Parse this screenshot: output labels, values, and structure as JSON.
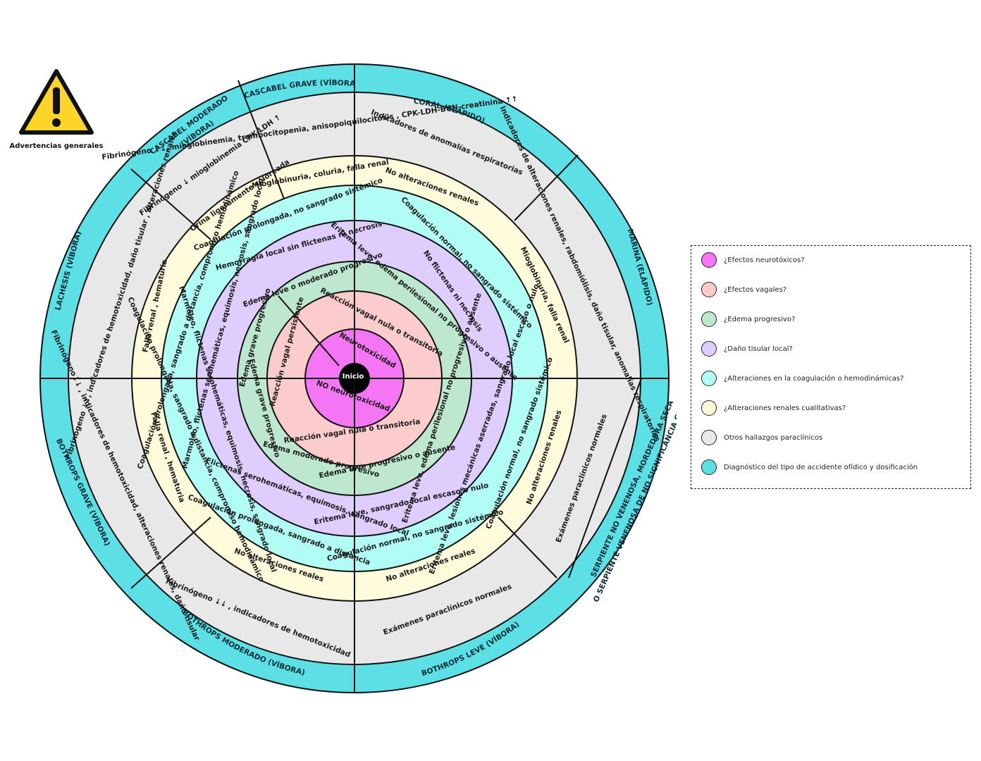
{
  "warning": {
    "icon": "warning-triangle-icon",
    "label": "Advertencias generales"
  },
  "legend": [
    {
      "label": "¿Efectos neurotóxicos?",
      "color": "#f476f5"
    },
    {
      "label": "¿Efectos vagales?",
      "color": "#fccccc"
    },
    {
      "label": "¿Edema progresivo?",
      "color": "#bde8cf"
    },
    {
      "label": "¿Daño tisular local?",
      "color": "#decdfd"
    },
    {
      "label": "¿Alteraciones en la coagulación o hemodinámicas?",
      "color": "#b1fcf5"
    },
    {
      "label": "¿Alteraciones renales cualitativas?",
      "color": "#fffbdb"
    },
    {
      "label": "Otros hallazgos paraclínicos",
      "color": "#e8e8e8"
    },
    {
      "label": "Diagnóstico del tipo de accidente ofídico  y dosificación",
      "color": "#5ce0e6"
    }
  ],
  "wheel": {
    "center_label": "Inicio",
    "neuro": {
      "yes": "Neurotoxicidad",
      "no": "NO neurotoxicidad"
    },
    "vagal": {
      "top_right": "Reacción vagal nula o transitoria",
      "top_left": "Reacción vagal persistente",
      "bottom": "Reacción vagal nula o transitoria"
    },
    "edema": {
      "a": "Eritema leve, edema perilesional no progresivo o ausente",
      "b": "Edema leve o moderado progresivo",
      "c": "Edema grave progresivo",
      "d": "Edema grave progresivo",
      "e": "Edema moderado progresivo",
      "f": "Edema leve progresivo o ausente",
      "g": "Eritema leve, edema perilesional no progresivo o ausente"
    },
    "tissue": {
      "a": "No flictenas ni necrosis",
      "b": "Hemorragia local sin flictenas ni necrosis",
      "c": "Marmoleo, flictenas serohemáticas, equimosis, necrosis, sangrado local",
      "d": "Marmoleo, flictenas serohemáticas, equimosis, necrosis, sangrado local",
      "e": "Flictenas serohemáticas, equimosis, sangrado local",
      "f": "Eritema leve, sangrado local escaso o nulo",
      "g": "Eritema leve, lesiones mecánicas aserradas, sangrado local escaso o nulo"
    },
    "coag": {
      "a": "Coagulación normal, no sangrado sistémico",
      "b": "Coagulación prolongada, no sangrado sistémico",
      "c": "Coagulación prolongada, sangrado a distancia, compromiso hemodinámico",
      "d": "Coagulación prolongada, sangrado a distancia, compromiso hemodinámico",
      "e": "Coagulación prolongada, sangrado a distancia",
      "f": "Coagulación normal, no sangrado sistémico",
      "g": "Coagulación normal, no sangrado sistémico"
    },
    "renal": {
      "a": "No alteraciones renales",
      "a2": "Mioglobinuria, falla renal",
      "b": "Mioglobinuria, coluria, falla renal",
      "b2": "Orina ligeramente coloreada",
      "c": "Falla renal , hematuria",
      "d": "Falla renal , hematuria",
      "e": "No alteraciones reales",
      "f": "No alteraciones reales",
      "g": "No alteraciones renales"
    },
    "other": {
      "coral": "Indicadores de anomalías respiratorias",
      "marina": "Indicadores de alteraciones renales, rabdomiólisis, daño tisular, anomalías respiratorias",
      "cascabel_grave": "Fibrinógeno ↓↓, mioglobinemia, trombocitopenia, anisopoiquilocitosis , CPK-LDH-BUN-creatinina ↑↑",
      "cascabel_moderado": "Fibrinógeno ↓ mioglobinemia CPK-LDH ↑",
      "lachesis": "Fibrinógeno ↓↓, indicadores de hemotoxicidad, daño tisular , alteraciones renales",
      "bothrops_grave": "Fibrinógeno↓↓ , indicadores de hemotoxicidad, alteraciones renales, daño tisular",
      "bothrops_moderado": "Fibrinógeno ↓↓ , indicadores de hemotoxicidad",
      "bothrops_leve": "Exámenes paraclínicos normales",
      "no_venenosa": "Exámenes paraclínicos normales"
    },
    "diagnosis": {
      "coral": "CORAL (ELÁPIDO)",
      "marina": "MARINA (ELÁPIDO)",
      "no_venenosa_1": "SERPIENTE NO VENENOSA, MORDEDURA SECA",
      "no_venenosa_2": "O SERPIENTE VENENOSA DE NO SIGNIFICANCIA CLÍNICA",
      "bothrops_leve": "BOTHROPS LEVE (VÍBORA)",
      "bothrops_moderado": "BOTHROPS MODERADO (VÍBORA)",
      "bothrops_grave": "BOTHROPS GRAVE (VÍBORA)",
      "lachesis": "LACHESIS (VÍBORA)",
      "cascabel_moderado_1": "CASCABEL MODERADO",
      "cascabel_moderado_2": "(VÍBORA)",
      "cascabel_grave": "CASCABEL GRAVE (VÍBORA)"
    }
  }
}
